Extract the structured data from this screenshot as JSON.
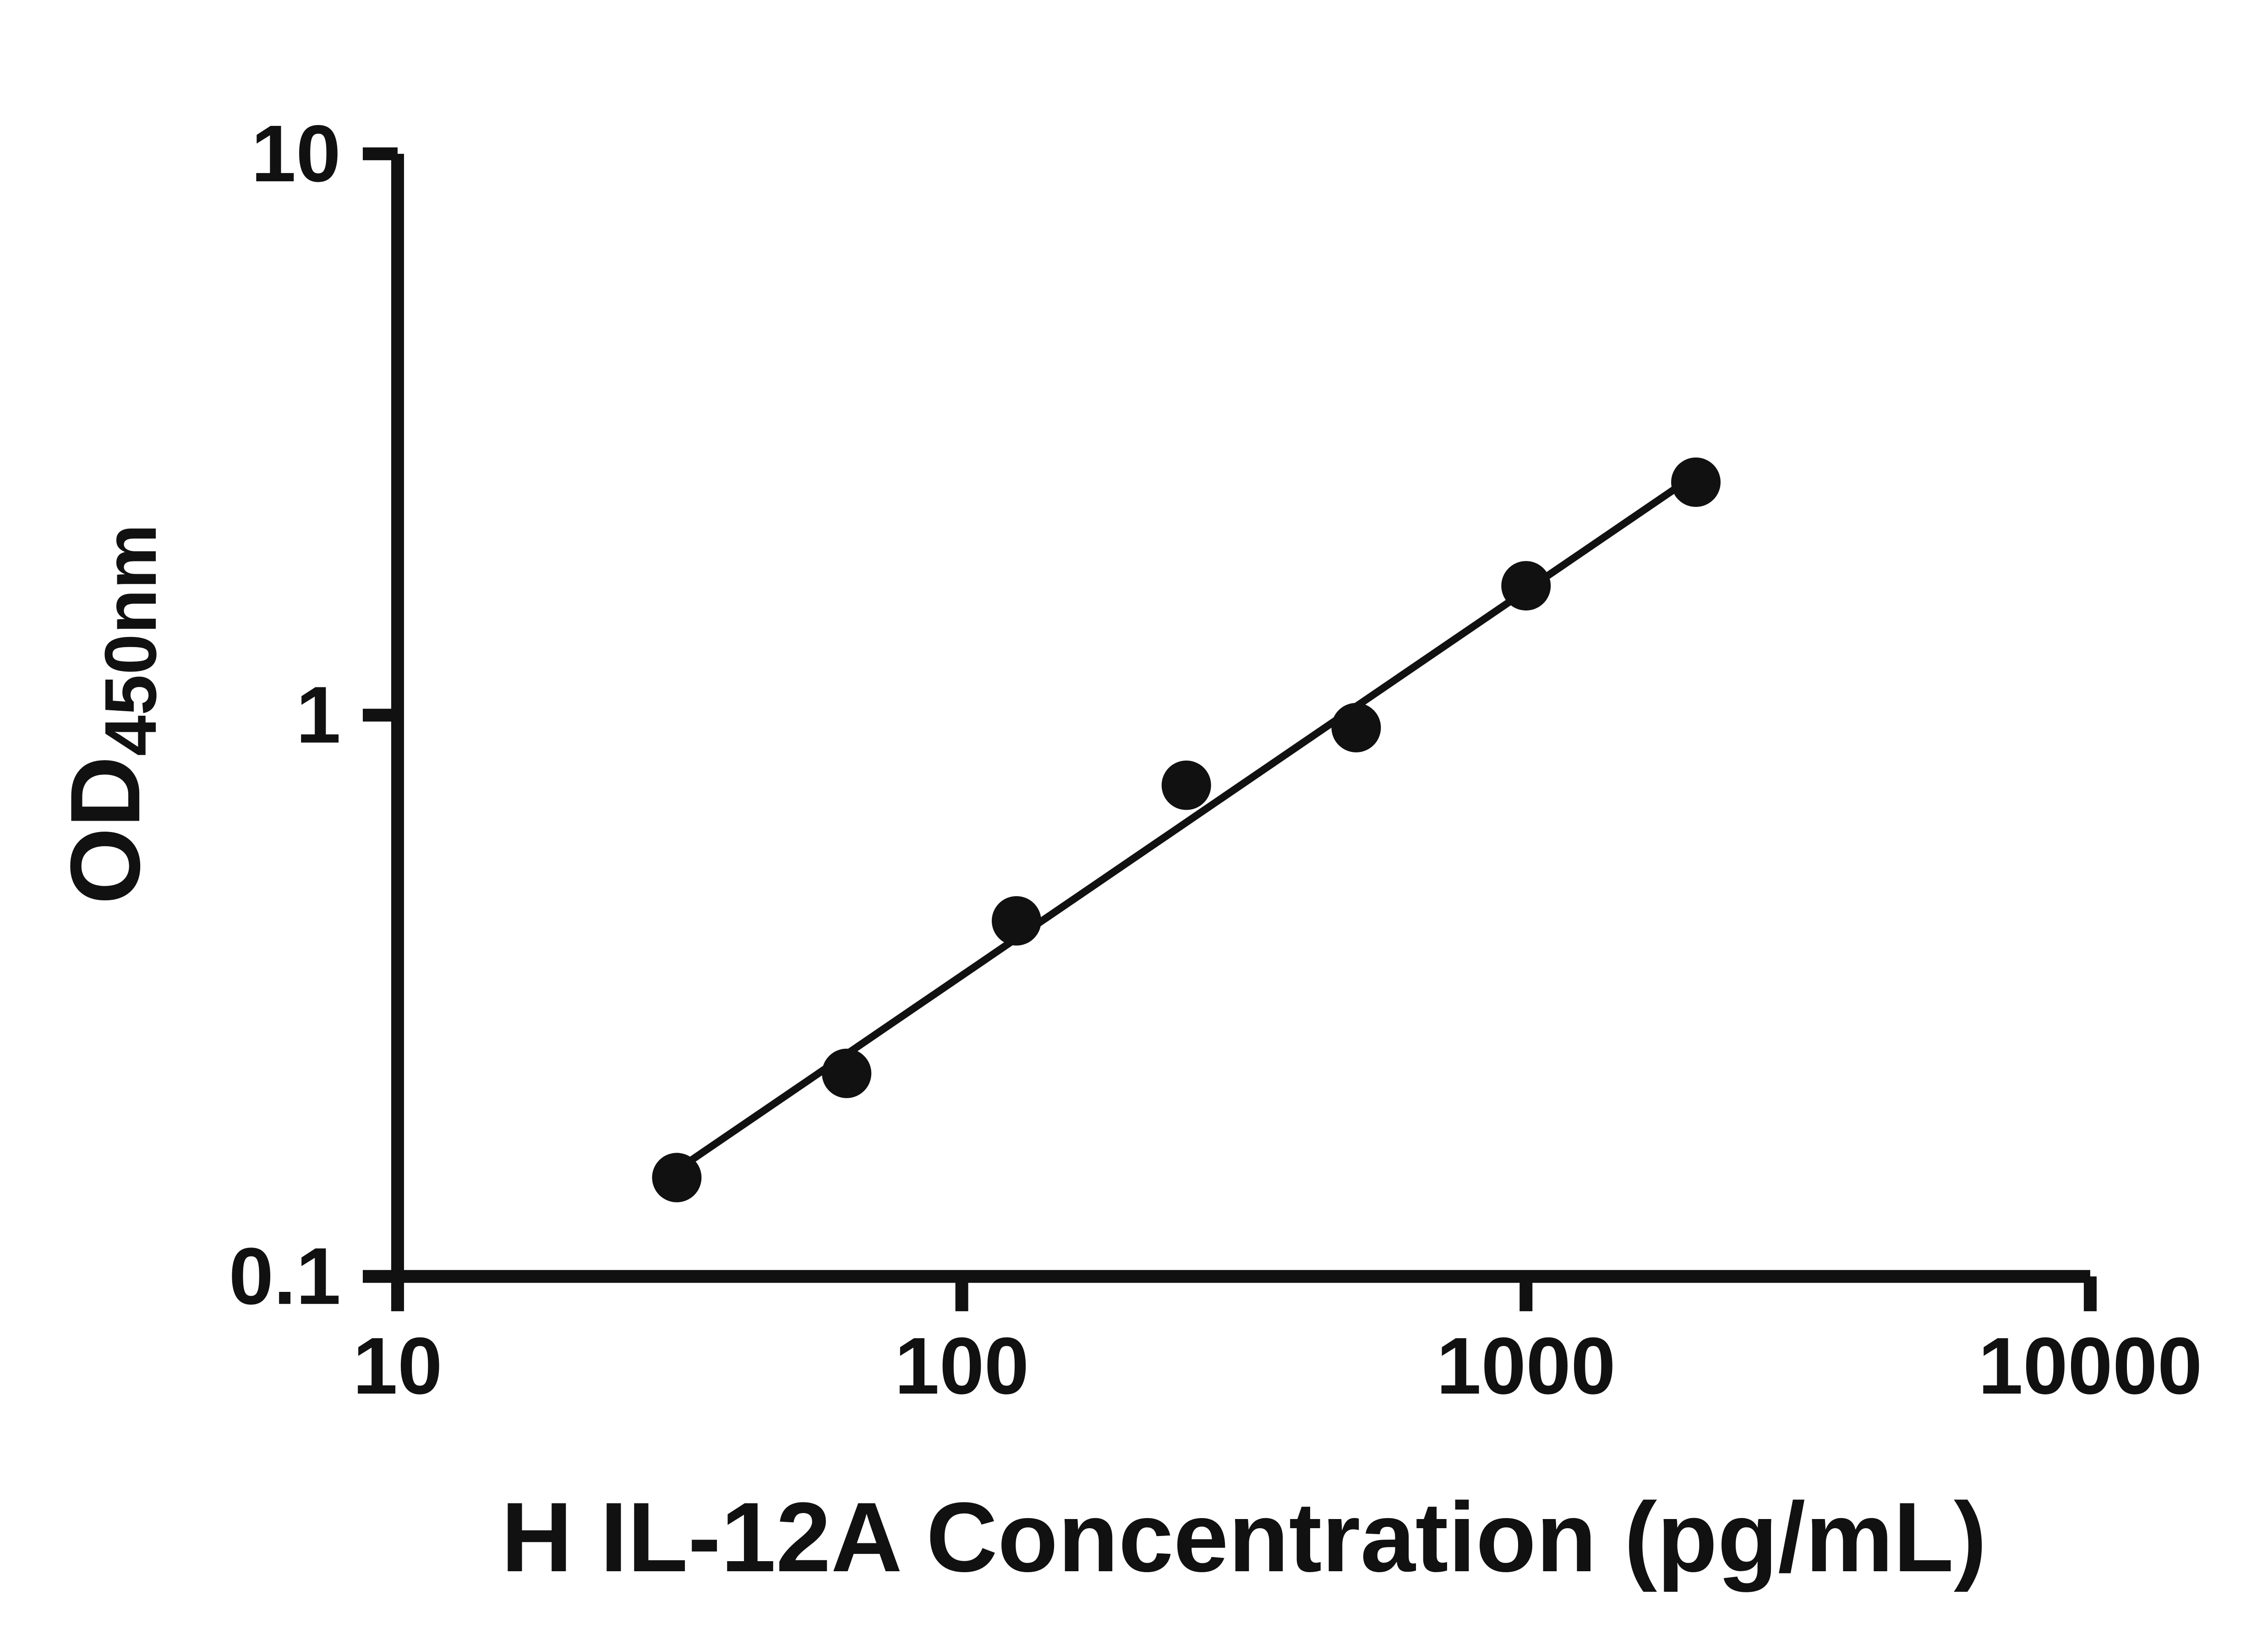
{
  "page": {
    "background": "#ffffff"
  },
  "chart_data": {
    "type": "scatter",
    "title": "",
    "xlabel": "H IL-12A Concentration (pg/mL)",
    "ylabel_main": "OD",
    "ylabel_sub": "450nm",
    "x_scale": "log",
    "y_scale": "log",
    "xlim": [
      10,
      10000
    ],
    "ylim": [
      0.1,
      10
    ],
    "grid": false,
    "legend": "none",
    "x_ticks": [
      {
        "value": 10,
        "label": "10"
      },
      {
        "value": 100,
        "label": "100"
      },
      {
        "value": 1000,
        "label": "1000"
      },
      {
        "value": 10000,
        "label": "10000"
      }
    ],
    "y_ticks": [
      {
        "value": 0.1,
        "label": "0.1"
      },
      {
        "value": 1,
        "label": "1"
      },
      {
        "value": 10,
        "label": "10"
      }
    ],
    "points": [
      {
        "x": 31.25,
        "y": 0.15
      },
      {
        "x": 62.5,
        "y": 0.23
      },
      {
        "x": 125,
        "y": 0.43
      },
      {
        "x": 250,
        "y": 0.75
      },
      {
        "x": 500,
        "y": 0.95
      },
      {
        "x": 1000,
        "y": 1.7
      },
      {
        "x": 2000,
        "y": 2.6
      }
    ],
    "trendline": {
      "x_start": 29,
      "x_end": 2080,
      "slope": 0.686,
      "intercept": -1.836
    },
    "marker_color": "#111111",
    "line_color": "#111111",
    "axis_color": "#111111"
  }
}
